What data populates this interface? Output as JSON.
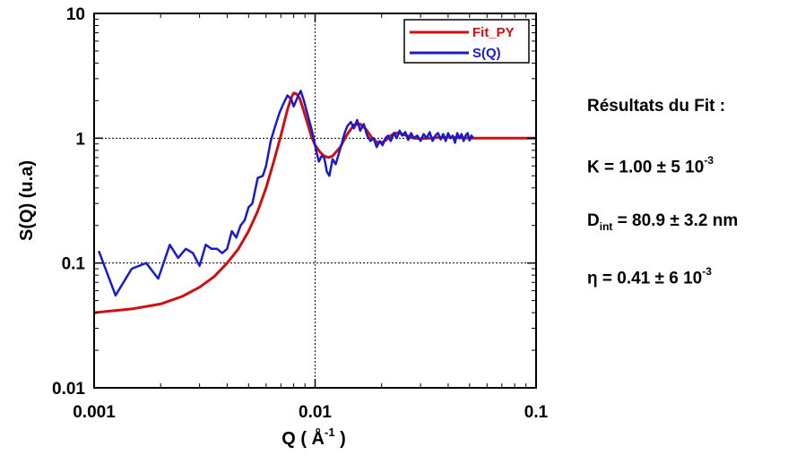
{
  "chart_data": {
    "type": "line",
    "xlabel": {
      "prefix": "Q ( ",
      "unit": "Å",
      "exp": "-1",
      "suffix": " )"
    },
    "ylabel": "S(Q) (u.a)",
    "xscale": "log",
    "yscale": "log",
    "xlim": [
      0.001,
      0.1
    ],
    "ylim": [
      0.01,
      10
    ],
    "xticks": [
      {
        "value": 0.001,
        "label": "0.001"
      },
      {
        "value": 0.01,
        "label": "0.01"
      },
      {
        "value": 0.1,
        "label": "0.1"
      }
    ],
    "yticks": [
      {
        "value": 0.01,
        "label": "0.01"
      },
      {
        "value": 0.1,
        "label": "0.1"
      },
      {
        "value": 1,
        "label": "1"
      },
      {
        "value": 10,
        "label": "10"
      }
    ],
    "gridlines": {
      "x": [
        0.01
      ],
      "y": [
        0.1,
        1
      ],
      "style": "dotted"
    },
    "legend_position": "top-right",
    "series": [
      {
        "name": "Fit_PY",
        "color": "#cc1111",
        "x": [
          0.001,
          0.0015,
          0.002,
          0.0025,
          0.003,
          0.0035,
          0.004,
          0.0045,
          0.005,
          0.0055,
          0.006,
          0.0065,
          0.007,
          0.0075,
          0.0078,
          0.008,
          0.0082,
          0.0085,
          0.0088,
          0.0092,
          0.0096,
          0.01,
          0.0105,
          0.011,
          0.0115,
          0.012,
          0.013,
          0.014,
          0.015,
          0.016,
          0.017,
          0.018,
          0.019,
          0.02,
          0.021,
          0.022,
          0.023,
          0.024,
          0.026,
          0.028,
          0.03,
          0.035,
          0.04,
          0.05,
          0.06,
          0.07,
          0.08,
          0.1
        ],
        "y": [
          0.04,
          0.043,
          0.047,
          0.054,
          0.064,
          0.078,
          0.1,
          0.13,
          0.18,
          0.26,
          0.4,
          0.65,
          1.05,
          1.7,
          2.1,
          2.3,
          2.28,
          2.1,
          1.75,
          1.35,
          1.05,
          0.88,
          0.78,
          0.72,
          0.7,
          0.72,
          0.85,
          1.08,
          1.28,
          1.3,
          1.18,
          1.02,
          0.93,
          0.92,
          0.97,
          1.05,
          1.1,
          1.1,
          1.05,
          1.0,
          0.99,
          1.01,
          1.02,
          1.0,
          1.0,
          1.0,
          1.0,
          1.0
        ]
      },
      {
        "name": "S(Q)",
        "color": "#1a1acc",
        "x": [
          0.00105,
          0.00125,
          0.00148,
          0.00172,
          0.00195,
          0.0022,
          0.0024,
          0.0026,
          0.0028,
          0.003,
          0.0032,
          0.0034,
          0.0036,
          0.0038,
          0.004,
          0.0042,
          0.0044,
          0.0046,
          0.0048,
          0.005,
          0.0052,
          0.0055,
          0.0058,
          0.006,
          0.0063,
          0.0066,
          0.0069,
          0.0072,
          0.0075,
          0.0078,
          0.008,
          0.0083,
          0.0086,
          0.0089,
          0.0092,
          0.0095,
          0.0098,
          0.0101,
          0.0104,
          0.0107,
          0.011,
          0.0113,
          0.0116,
          0.012,
          0.0124,
          0.0128,
          0.0132,
          0.0136,
          0.014,
          0.0145,
          0.015,
          0.0155,
          0.016,
          0.0166,
          0.0172,
          0.0178,
          0.0184,
          0.019,
          0.0196,
          0.0202,
          0.0208,
          0.0214,
          0.022,
          0.0227,
          0.0234,
          0.0241,
          0.0248,
          0.0256,
          0.0264,
          0.0272,
          0.028,
          0.029,
          0.03,
          0.031,
          0.032,
          0.033,
          0.034,
          0.035,
          0.036,
          0.037,
          0.038,
          0.039,
          0.04,
          0.041,
          0.042,
          0.043,
          0.044,
          0.045,
          0.046,
          0.047,
          0.048,
          0.049,
          0.05,
          0.051,
          0.052
        ],
        "y": [
          0.125,
          0.055,
          0.09,
          0.1,
          0.075,
          0.14,
          0.11,
          0.13,
          0.12,
          0.095,
          0.14,
          0.13,
          0.13,
          0.12,
          0.13,
          0.18,
          0.16,
          0.2,
          0.22,
          0.28,
          0.3,
          0.48,
          0.5,
          0.6,
          0.95,
          1.25,
          1.6,
          1.9,
          2.2,
          2.05,
          1.8,
          2.1,
          2.4,
          2.0,
          1.6,
          1.3,
          1.05,
          0.8,
          0.65,
          0.72,
          0.7,
          0.54,
          0.5,
          0.68,
          0.62,
          0.75,
          0.9,
          1.1,
          1.25,
          1.35,
          1.2,
          1.4,
          1.15,
          1.3,
          1.05,
          0.95,
          1.0,
          0.85,
          0.95,
          0.88,
          1.0,
          1.05,
          0.95,
          1.1,
          1.0,
          1.15,
          1.05,
          1.12,
          0.97,
          1.1,
          1.0,
          1.05,
          0.95,
          1.08,
          1.0,
          1.12,
          0.95,
          1.05,
          1.1,
          0.98,
          1.08,
          0.95,
          1.1,
          1.0,
          1.05,
          0.92,
          1.1,
          1.0,
          1.08,
          0.95,
          1.05,
          1.1,
          0.96,
          1.05,
          1.0
        ]
      }
    ]
  },
  "results": {
    "title": "Résultats du Fit :",
    "k": {
      "prefix": "K = 1.00 ± 5 10",
      "exp": "-3"
    },
    "d": {
      "main": "D",
      "sub": "int",
      "suffix": " = 80.9 ± 3.2 nm"
    },
    "eta": {
      "prefix": "η = 0.41 ± 6 10",
      "exp": "-3"
    }
  }
}
